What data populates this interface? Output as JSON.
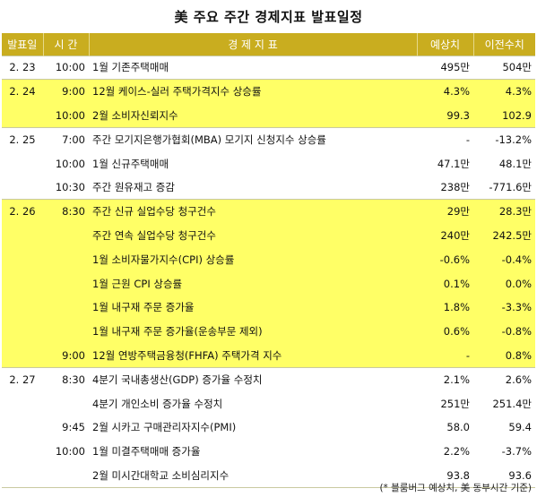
{
  "title": "美 주요 주간 경제지표 발표일정",
  "headers": [
    "발표일",
    "시 간",
    "경 제 지 표",
    "예상치",
    "이전수치"
  ],
  "rows": [
    {
      "date": "2. 23",
      "time": "10:00",
      "indicator": "1월 기존주택매매",
      "forecast": "495만",
      "previous": "504만"
    },
    {
      "date": "2. 24",
      "time": "9:00",
      "indicator": "12월 케이스-실러 주택가격지수 상승률",
      "forecast": "4.3%",
      "previous": "4.3%"
    },
    {
      "date": "",
      "time": "10:00",
      "indicator": "2월 소비자신뢰지수",
      "forecast": "99.3",
      "previous": "102.9"
    },
    {
      "date": "2. 25",
      "time": "7:00",
      "indicator": "주간 모기지은행가협회(MBA) 모기지 신청지수 상승률",
      "forecast": "-",
      "previous": "-13.2%"
    },
    {
      "date": "",
      "time": "10:00",
      "indicator": "1월 신규주택매매",
      "forecast": "47.1만",
      "previous": "48.1만"
    },
    {
      "date": "",
      "time": "10:30",
      "indicator": "주간 원유재고 증감",
      "forecast": "238만",
      "previous": "-771.6만"
    },
    {
      "date": "2. 26",
      "time": "8:30",
      "indicator": "주간 신규 실업수당 청구건수",
      "forecast": "29만",
      "previous": "28.3만"
    },
    {
      "date": "",
      "time": "",
      "indicator": "주간 연속 실업수당 청구건수",
      "forecast": "240만",
      "previous": "242.5만"
    },
    {
      "date": "",
      "time": "",
      "indicator": "1월 소비자물가지수(CPI) 상승률",
      "forecast": "-0.6%",
      "previous": "-0.4%"
    },
    {
      "date": "",
      "time": "",
      "indicator": "1월 근원 CPI 상승률",
      "forecast": "0.1%",
      "previous": "0.0%"
    },
    {
      "date": "",
      "time": "",
      "indicator": "1월 내구재 주문 증가율",
      "forecast": "1.8%",
      "previous": "-3.3%"
    },
    {
      "date": "",
      "time": "",
      "indicator": "1월 내구재 주문 증가율(운송부문 제외)",
      "forecast": "0.6%",
      "previous": "-0.8%"
    },
    {
      "date": "",
      "time": "9:00",
      "indicator": "12월 연방주택금융청(FHFA) 주택가격 지수",
      "forecast": "-",
      "previous": "0.8%"
    },
    {
      "date": "2. 27",
      "time": "8:30",
      "indicator": "4분기 국내총생산(GDP) 증가율 수정치",
      "forecast": "2.1%",
      "previous": "2.6%"
    },
    {
      "date": "",
      "time": "",
      "indicator": "4분기 개인소비 증가율 수정치",
      "forecast": "251만",
      "previous": "251.4만"
    },
    {
      "date": "",
      "time": "9:45",
      "indicator": "2월 시카고 구매관리자지수(PMI)",
      "forecast": "58.0",
      "previous": "59.4"
    },
    {
      "date": "",
      "time": "10:00",
      "indicator": "1월 미결주택매매 증가율",
      "forecast": "2.2%",
      "previous": "-3.7%"
    },
    {
      "date": "",
      "time": "",
      "indicator": "2월 미시간대학교 소비심리지수",
      "forecast": "93.8",
      "previous": "93.6"
    }
  ],
  "row_styles": [
    "white",
    "yellow",
    "yellow",
    "white",
    "white",
    "white",
    "yellow",
    "yellow",
    "yellow",
    "yellow",
    "yellow",
    "yellow",
    "yellow",
    "white",
    "white",
    "white",
    "white",
    "white"
  ],
  "group_starts": [
    0,
    1,
    3,
    6,
    13
  ],
  "footnote": "(* 블룸버그 예상치, 美 동부시간 기준)",
  "colors": {
    "header_bg": "#c9ad1f",
    "highlight": "#ffff66",
    "white": "#ffffff"
  }
}
